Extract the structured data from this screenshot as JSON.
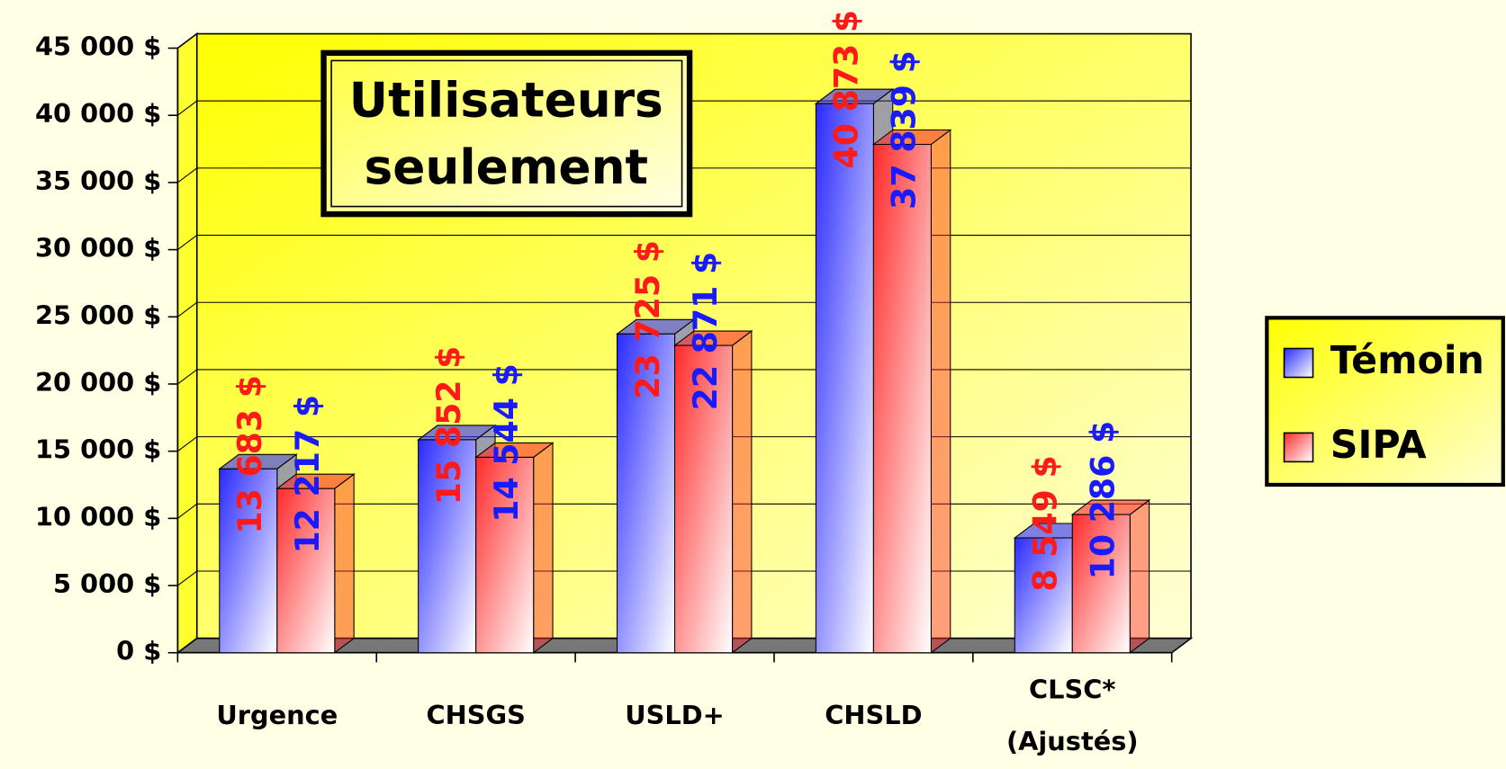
{
  "chart_data": {
    "type": "bar3d",
    "annotation": "Utilisateurs\nseulement",
    "categories": [
      "Urgence",
      "CHSGS",
      "USLD+",
      "CHSLD",
      "CLSC*\n(Ajustés)"
    ],
    "series": [
      {
        "name": "Témoin",
        "color": "#2a2aff",
        "label_color": "#ff1a1a",
        "values": [
          13683,
          15852,
          23725,
          40873,
          8549
        ],
        "value_labels": [
          "13 683 $",
          "15 852 $",
          "23 725 $",
          "40 873 $",
          "8 549 $"
        ]
      },
      {
        "name": "SIPA",
        "color": "#ff2a2a",
        "label_color": "#1a1aff",
        "values": [
          12217,
          14544,
          22871,
          37839,
          10286
        ],
        "value_labels": [
          "12 217 $",
          "14 544 $",
          "22 871 $",
          "37 839 $",
          "10 286 $"
        ]
      }
    ],
    "ylim": [
      0,
      45000
    ],
    "yticks": [
      {
        "value": 0,
        "label": "0 $"
      },
      {
        "value": 5000,
        "label": "5 000 $"
      },
      {
        "value": 10000,
        "label": "10 000 $"
      },
      {
        "value": 15000,
        "label": "15 000 $"
      },
      {
        "value": 20000,
        "label": "20 000 $"
      },
      {
        "value": 25000,
        "label": "25 000 $"
      },
      {
        "value": 30000,
        "label": "30 000 $"
      },
      {
        "value": 35000,
        "label": "35 000 $"
      },
      {
        "value": 40000,
        "label": "40 000 $"
      },
      {
        "value": 45000,
        "label": "45 000 $"
      }
    ],
    "grid": true,
    "legend": "right"
  }
}
